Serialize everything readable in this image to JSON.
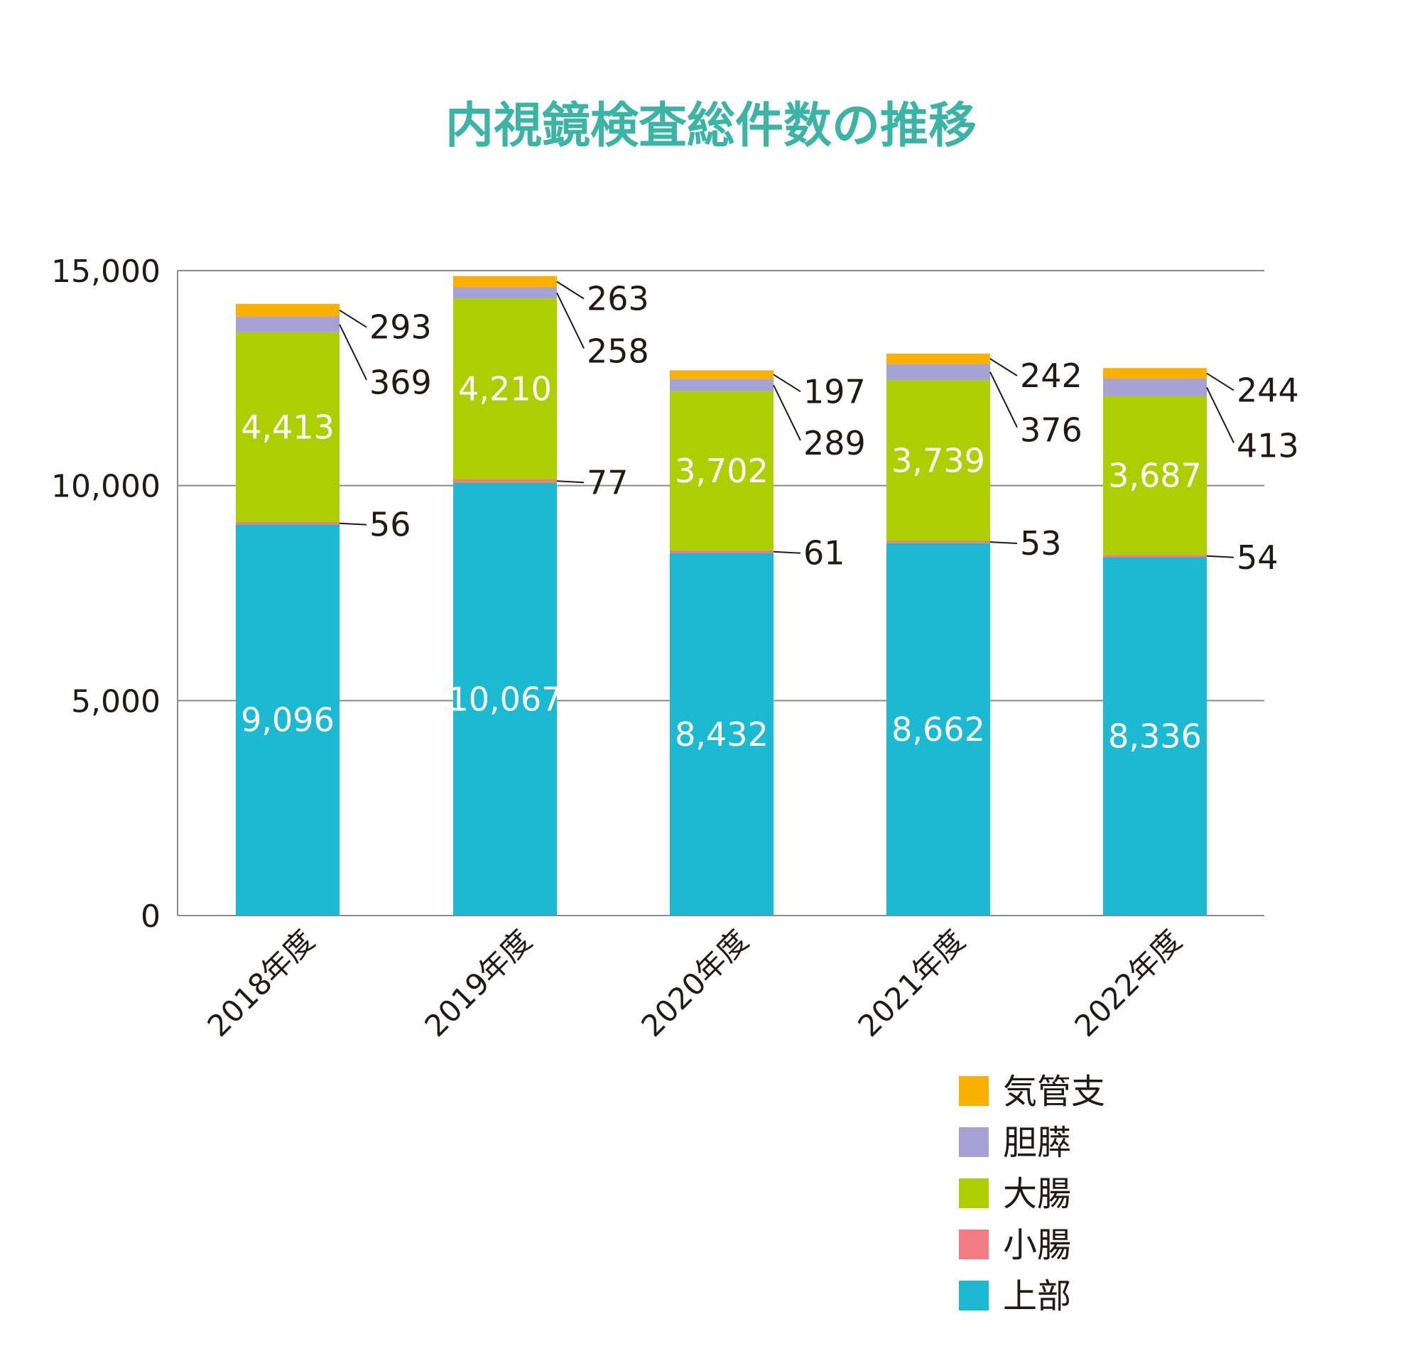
{
  "chart_data": {
    "type": "bar",
    "stacked": true,
    "title": "内視鏡検査総件数の推移",
    "categories": [
      "2018年度",
      "2019年度",
      "2020年度",
      "2021年度",
      "2022年度"
    ],
    "series": [
      {
        "name": "上部",
        "color": "#1CB9D3",
        "values": [
          9096,
          10067,
          8432,
          8662,
          8336
        ],
        "labels": [
          "9,096",
          "10,067",
          "8,432",
          "8,662",
          "8,336"
        ],
        "label_position": "inside"
      },
      {
        "name": "小腸",
        "color": "#F27C84",
        "values": [
          56,
          77,
          61,
          53,
          54
        ],
        "labels": [
          "56",
          "77",
          "61",
          "53",
          "54"
        ],
        "label_position": "outside"
      },
      {
        "name": "大腸",
        "color": "#ADCE02",
        "values": [
          4413,
          4210,
          3702,
          3739,
          3687
        ],
        "labels": [
          "4,413",
          "4,210",
          "3,702",
          "3,739",
          "3,687"
        ],
        "label_position": "inside"
      },
      {
        "name": "胆膵",
        "color": "#A7A2D3",
        "values": [
          369,
          258,
          289,
          376,
          413
        ],
        "labels": [
          "369",
          "258",
          "289",
          "376",
          "413"
        ],
        "label_position": "outside"
      },
      {
        "name": "気管支",
        "color": "#FAB000",
        "values": [
          293,
          263,
          197,
          242,
          244
        ],
        "labels": [
          "293",
          "263",
          "197",
          "242",
          "244"
        ],
        "label_position": "outside"
      }
    ],
    "ylim": [
      0,
      15000
    ],
    "yticks": [
      0,
      5000,
      10000,
      15000
    ],
    "ytick_labels": [
      "0",
      "5,000",
      "10,000",
      "15,000"
    ],
    "grid": true,
    "legend_position": "bottom-right",
    "legend_order": [
      "気管支",
      "胆膵",
      "大腸",
      "小腸",
      "上部"
    ],
    "title_color": "#3BB4A6"
  }
}
